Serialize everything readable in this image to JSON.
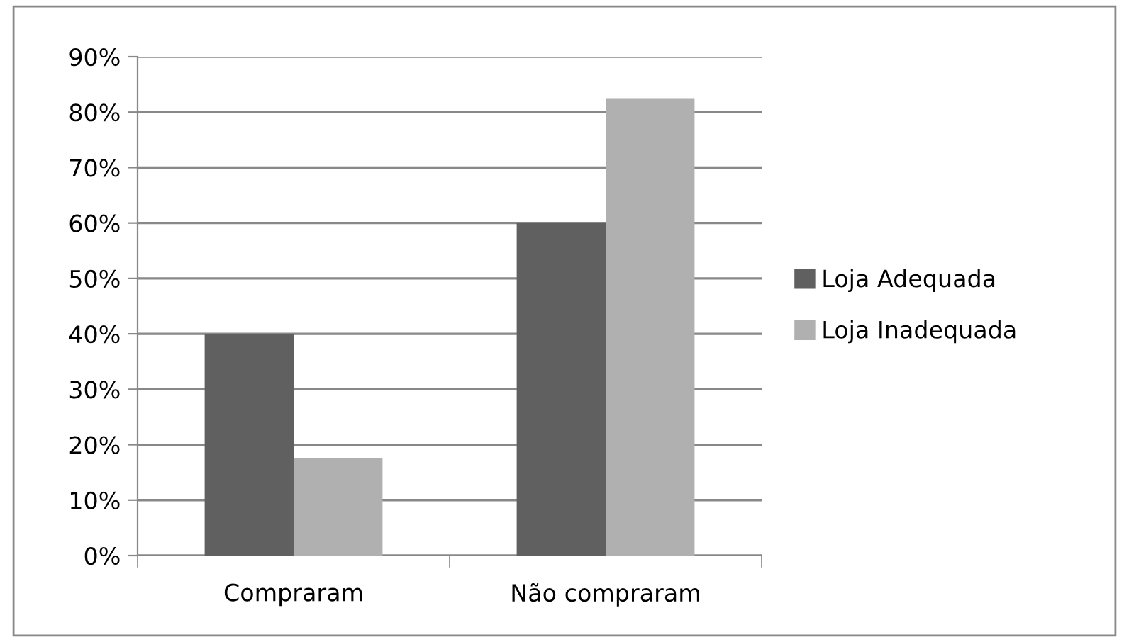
{
  "chart_data": {
    "type": "bar",
    "categories": [
      "Compraram",
      "Não compraram"
    ],
    "series": [
      {
        "name": "Loja Adequada",
        "color": "#606060",
        "values": [
          40,
          60
        ]
      },
      {
        "name": "Loja Inadequada",
        "color": "#b0b0b0",
        "values": [
          17.6,
          82.4
        ]
      }
    ],
    "ylim": [
      0,
      90
    ],
    "yticks": [
      {
        "value": 0,
        "label": "0%"
      },
      {
        "value": 10,
        "label": "10%"
      },
      {
        "value": 20,
        "label": "20%"
      },
      {
        "value": 30,
        "label": "30%"
      },
      {
        "value": 40,
        "label": "40%"
      },
      {
        "value": 50,
        "label": "50%"
      },
      {
        "value": 60,
        "label": "60%"
      },
      {
        "value": 70,
        "label": "70%"
      },
      {
        "value": 80,
        "label": "80%"
      },
      {
        "value": 90,
        "label": "90%"
      }
    ],
    "grid": "y",
    "legend": "right"
  }
}
